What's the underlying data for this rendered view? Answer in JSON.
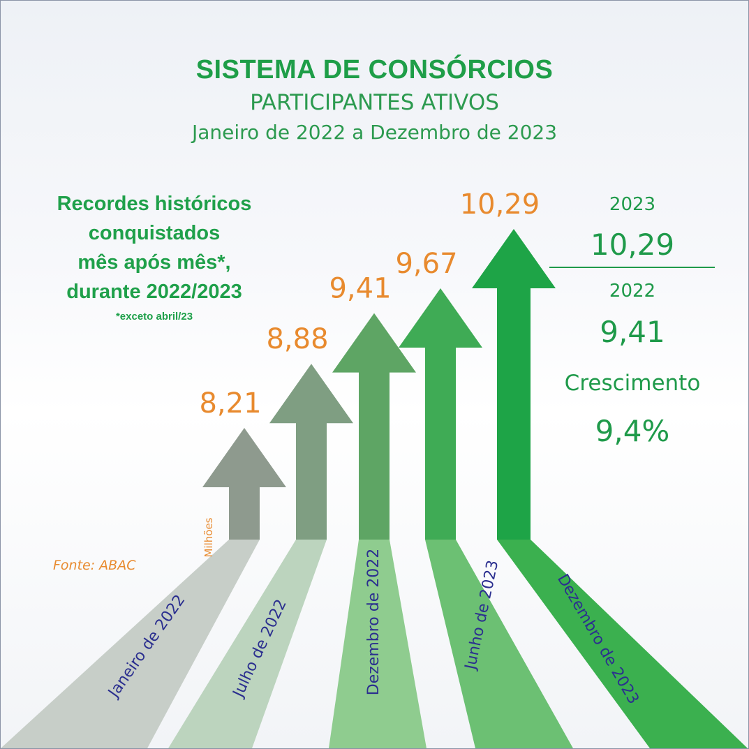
{
  "header": {
    "title": "SISTEMA DE CONSÓRCIOS",
    "subtitle": "PARTICIPANTES ATIVOS",
    "period": "Janeiro de 2022 a Dezembro de 2023"
  },
  "note": {
    "lines": [
      "Recordes históricos",
      "conquistados",
      "mês após mês*,",
      "durante 2022/2023"
    ],
    "footnote": "*exceto abril/23"
  },
  "unit_label": "Milhões",
  "source": "Fonte: ABAC",
  "summary": {
    "year_2023": "2023",
    "value_2023": "10,29",
    "year_2022": "2022",
    "value_2022": "9,41",
    "growth_label": "Crescimento",
    "growth_value": "9,4%"
  },
  "colors": {
    "title_green": "#1e9e48",
    "value_orange": "#e88a2e",
    "date_label_blue": "#2b2f8f",
    "arrow_colors": [
      "#8e9a8e",
      "#7f9e82",
      "#5ea564",
      "#3fab55",
      "#1ea447"
    ],
    "road_colors": [
      "#c7cec8",
      "#bcd4be",
      "#8fcc8f",
      "#6cc073",
      "#3bb04f"
    ]
  },
  "chart_data": {
    "type": "bar",
    "unit": "Milhões",
    "categories": [
      "Janeiro de 2022",
      "Julho de 2022",
      "Dezembro de 2022",
      "Junho de 2023",
      "Dezembro de 2023"
    ],
    "values": [
      8.21,
      8.88,
      9.41,
      9.67,
      10.29
    ],
    "value_labels": [
      "8,21",
      "8,88",
      "9,41",
      "9,67",
      "10,29"
    ]
  }
}
